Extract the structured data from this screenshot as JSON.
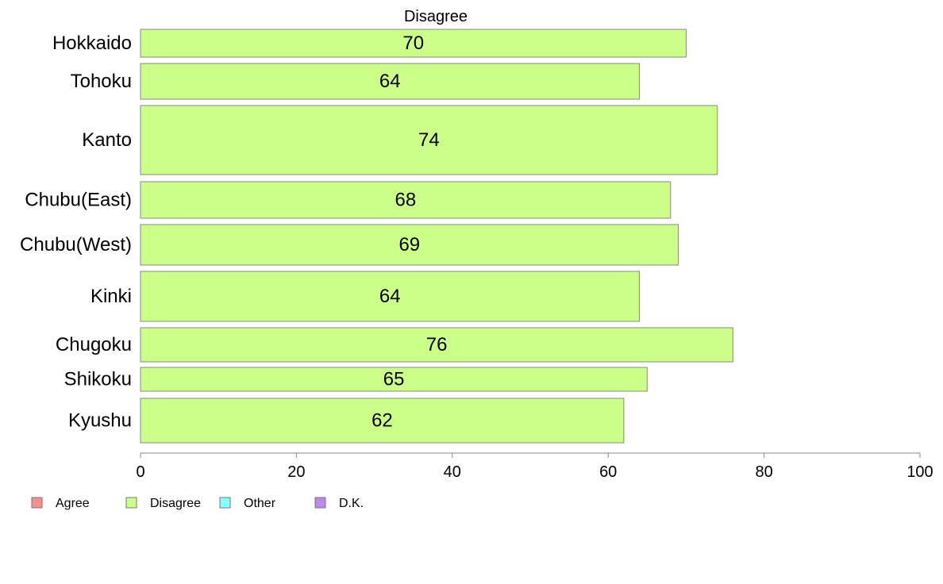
{
  "chart_data": {
    "type": "bar",
    "orientation": "horizontal",
    "title": "Disagree",
    "categories": [
      "Hokkaido",
      "Tohoku",
      "Kanto",
      "Chubu(East)",
      "Chubu(West)",
      "Kinki",
      "Chugoku",
      "Shikoku",
      "Kyushu"
    ],
    "values": [
      70,
      64,
      74,
      68,
      69,
      64,
      76,
      65,
      62
    ],
    "value_labels": [
      "70",
      "64",
      "74",
      "68",
      "69",
      "64",
      "76",
      "65",
      "62"
    ],
    "xlim": [
      0,
      100
    ],
    "xticks": [
      0,
      20,
      40,
      60,
      80,
      100
    ],
    "xtick_labels": [
      "0",
      "20",
      "40",
      "60",
      "80",
      "100"
    ],
    "xlabel": "",
    "ylabel": "",
    "bar_color": "#ccff88",
    "bar_edge_color": "#888888",
    "grid": false,
    "legend": {
      "placement": "bottom-left",
      "entries": [
        {
          "label": "Agree",
          "color": "#ff8c8c"
        },
        {
          "label": "Disagree",
          "color": "#ccff88"
        },
        {
          "label": "Other",
          "color": "#88ffff"
        },
        {
          "label": "D.K.",
          "color": "#bb88ee"
        }
      ]
    }
  }
}
